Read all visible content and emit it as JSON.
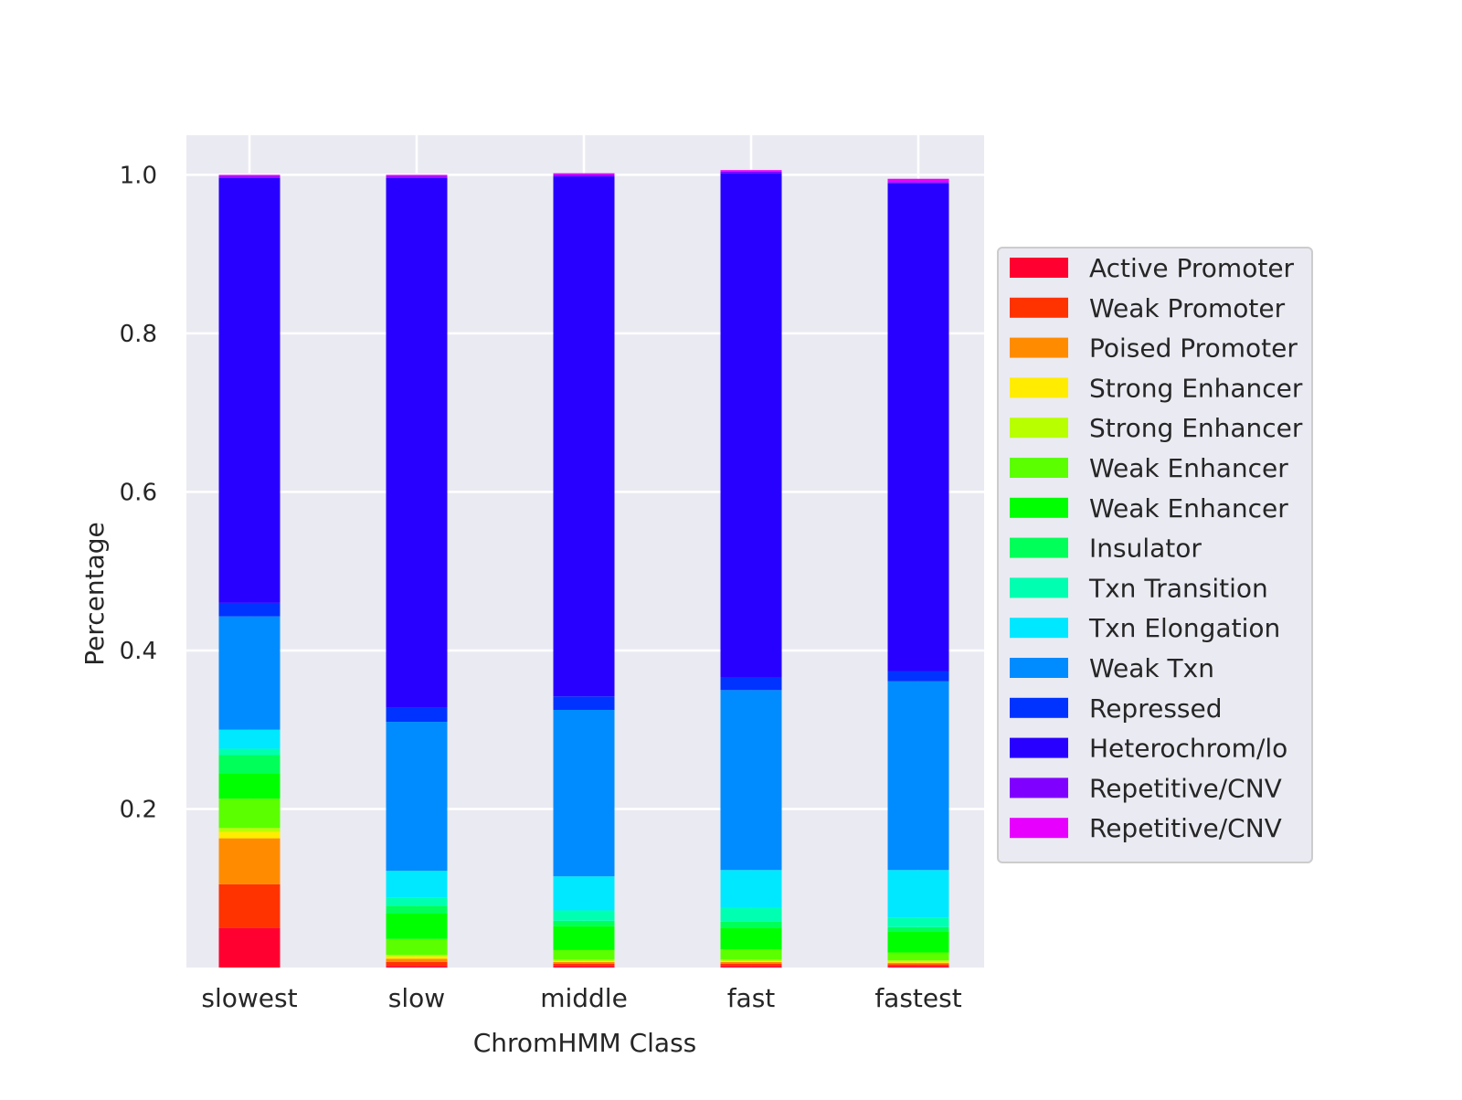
{
  "chart_data": {
    "type": "bar",
    "stacked": true,
    "title": "",
    "xlabel": "ChromHMM Class",
    "ylabel": "Percentage",
    "ylim": [
      0.0,
      1.05
    ],
    "yticks": [
      0.2,
      0.4,
      0.6,
      0.8,
      1.0
    ],
    "ytick_labels": [
      "0.2",
      "0.4",
      "0.6",
      "0.8",
      "1.0"
    ],
    "grid": true,
    "legend_position": "right",
    "categories": [
      "slowest",
      "slow",
      "middle",
      "fast",
      "fastest"
    ],
    "series": [
      {
        "name": "Active Promoter",
        "color": "#ff0030",
        "values": [
          0.05,
          0.002,
          0.002,
          0.002,
          0.002
        ]
      },
      {
        "name": "Weak Promoter",
        "color": "#ff3300",
        "values": [
          0.055,
          0.005,
          0.003,
          0.003,
          0.002
        ]
      },
      {
        "name": "Poised Promoter",
        "color": "#ff8c00",
        "values": [
          0.058,
          0.004,
          0.002,
          0.002,
          0.002
        ]
      },
      {
        "name": "Strong Enhancer",
        "color": "#ffec00",
        "values": [
          0.008,
          0.003,
          0.001,
          0.001,
          0.001
        ]
      },
      {
        "name": "Strong Enhancer",
        "color": "#b8ff00",
        "values": [
          0.005,
          0.002,
          0.002,
          0.002,
          0.002
        ]
      },
      {
        "name": "Weak Enhancer",
        "color": "#5cff00",
        "values": [
          0.037,
          0.02,
          0.012,
          0.013,
          0.01
        ]
      },
      {
        "name": "Weak Enhancer",
        "color": "#00ff00",
        "values": [
          0.032,
          0.032,
          0.03,
          0.027,
          0.026
        ]
      },
      {
        "name": "Insulator",
        "color": "#00ff58",
        "values": [
          0.023,
          0.01,
          0.007,
          0.008,
          0.006
        ]
      },
      {
        "name": "Txn Transition",
        "color": "#00ffb0",
        "values": [
          0.008,
          0.01,
          0.013,
          0.017,
          0.012
        ]
      },
      {
        "name": "Txn Elongation",
        "color": "#00e8ff",
        "values": [
          0.024,
          0.034,
          0.043,
          0.048,
          0.06
        ]
      },
      {
        "name": "Weak Txn",
        "color": "#008cff",
        "values": [
          0.143,
          0.188,
          0.21,
          0.227,
          0.238
        ]
      },
      {
        "name": "Repressed",
        "color": "#0033ff",
        "values": [
          0.017,
          0.018,
          0.017,
          0.016,
          0.013
        ]
      },
      {
        "name": "Heterochrom/lo",
        "color": "#2800ff",
        "values": [
          0.536,
          0.668,
          0.656,
          0.636,
          0.615
        ]
      },
      {
        "name": "Repetitive/CNV",
        "color": "#8000ff",
        "values": [
          0.002,
          0.002,
          0.002,
          0.002,
          0.002
        ]
      },
      {
        "name": "Repetitive/CNV",
        "color": "#e800ff",
        "values": [
          0.002,
          0.002,
          0.002,
          0.002,
          0.004
        ]
      }
    ]
  }
}
